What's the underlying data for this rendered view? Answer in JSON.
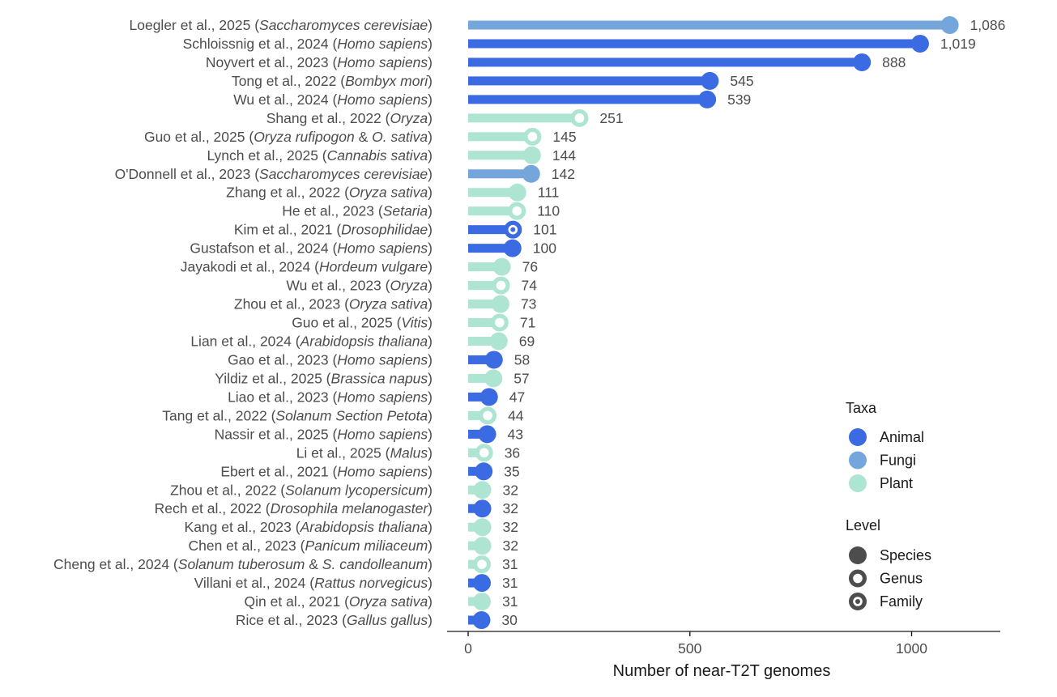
{
  "chart_data": {
    "type": "lollipop",
    "title": "",
    "xlabel": "Number of near-T2T genomes",
    "ylabel": "",
    "xlim": [
      -45,
      1200
    ],
    "xticks": [
      0,
      500,
      1000
    ],
    "xtick_labels": [
      "0",
      "500",
      "1000"
    ],
    "grid": false,
    "legend_position": "bottom-right",
    "colors": {
      "Animal": "#3a6be2",
      "Fungi": "#74a6dc",
      "Plant": "#aee5d2"
    },
    "legend": {
      "taxa_title": "Taxa",
      "taxa": [
        "Animal",
        "Fungi",
        "Plant"
      ],
      "level_title": "Level",
      "levels": [
        "Species",
        "Genus",
        "Family"
      ],
      "level_color": "#4d4d4d"
    },
    "rows": [
      {
        "author": "Loegler et al., 2025",
        "species": "Saccharomyces cerevisiae",
        "value": 1086,
        "label": "1,086",
        "taxa": "Fungi",
        "level": "Species"
      },
      {
        "author": "Schloissnig et al., 2024",
        "species": "Homo sapiens",
        "value": 1019,
        "label": "1,019",
        "taxa": "Animal",
        "level": "Species"
      },
      {
        "author": "Noyvert et al., 2023",
        "species": "Homo sapiens",
        "value": 888,
        "label": "888",
        "taxa": "Animal",
        "level": "Species"
      },
      {
        "author": "Tong et al., 2022",
        "species": "Bombyx mori",
        "value": 545,
        "label": "545",
        "taxa": "Animal",
        "level": "Species"
      },
      {
        "author": "Wu et al., 2024",
        "species": "Homo sapiens",
        "value": 539,
        "label": "539",
        "taxa": "Animal",
        "level": "Species"
      },
      {
        "author": "Shang et al., 2022",
        "species": "Oryza",
        "value": 251,
        "label": "251",
        "taxa": "Plant",
        "level": "Genus"
      },
      {
        "author": "Guo et al., 2025",
        "species": "Oryza rufipogon",
        "species_join": " & ",
        "species2": "O. sativa",
        "value": 145,
        "label": "145",
        "taxa": "Plant",
        "level": "Genus"
      },
      {
        "author": "Lynch et al., 2025",
        "species": "Cannabis sativa",
        "value": 144,
        "label": "144",
        "taxa": "Plant",
        "level": "Species"
      },
      {
        "author": "O'Donnell et al., 2023",
        "species": "Saccharomyces cerevisiae",
        "value": 142,
        "label": "142",
        "taxa": "Fungi",
        "level": "Species"
      },
      {
        "author": "Zhang et al., 2022",
        "species": "Oryza sativa",
        "value": 111,
        "label": "111",
        "taxa": "Plant",
        "level": "Species"
      },
      {
        "author": "He et al., 2023",
        "species": "Setaria",
        "value": 110,
        "label": "110",
        "taxa": "Plant",
        "level": "Genus"
      },
      {
        "author": "Kim et al., 2021",
        "species": "Drosophilidae",
        "value": 101,
        "label": "101",
        "taxa": "Animal",
        "level": "Family"
      },
      {
        "author": "Gustafson et al., 2024",
        "species": "Homo sapiens",
        "value": 100,
        "label": "100",
        "taxa": "Animal",
        "level": "Species"
      },
      {
        "author": "Jayakodi et al., 2024",
        "species": "Hordeum vulgare",
        "value": 76,
        "label": "76",
        "taxa": "Plant",
        "level": "Species"
      },
      {
        "author": "Wu et al., 2023",
        "species": "Oryza",
        "value": 74,
        "label": "74",
        "taxa": "Plant",
        "level": "Genus"
      },
      {
        "author": "Zhou et al., 2023",
        "species": "Oryza sativa",
        "value": 73,
        "label": "73",
        "taxa": "Plant",
        "level": "Species"
      },
      {
        "author": "Guo et al., 2025",
        "species": "Vitis",
        "value": 71,
        "label": "71",
        "taxa": "Plant",
        "level": "Genus"
      },
      {
        "author": "Lian et al., 2024",
        "species": "Arabidopsis thaliana",
        "value": 69,
        "label": "69",
        "taxa": "Plant",
        "level": "Species"
      },
      {
        "author": "Gao et al., 2023",
        "species": "Homo sapiens",
        "value": 58,
        "label": "58",
        "taxa": "Animal",
        "level": "Species"
      },
      {
        "author": "Yildiz et al., 2025",
        "species": "Brassica napus",
        "value": 57,
        "label": "57",
        "taxa": "Plant",
        "level": "Species"
      },
      {
        "author": "Liao et al., 2023",
        "species": "Homo sapiens",
        "value": 47,
        "label": "47",
        "taxa": "Animal",
        "level": "Species"
      },
      {
        "author": "Tang et al., 2022",
        "species": "Solanum Section Petota",
        "value": 44,
        "label": "44",
        "taxa": "Plant",
        "level": "Genus"
      },
      {
        "author": "Nassir et al., 2025",
        "species": "Homo sapiens",
        "value": 43,
        "label": "43",
        "taxa": "Animal",
        "level": "Species"
      },
      {
        "author": "Li et al., 2025",
        "species": "Malus",
        "value": 36,
        "label": "36",
        "taxa": "Plant",
        "level": "Genus"
      },
      {
        "author": "Ebert et al., 2021",
        "species": "Homo sapiens",
        "value": 35,
        "label": "35",
        "taxa": "Animal",
        "level": "Species"
      },
      {
        "author": "Zhou et al., 2022",
        "species": "Solanum lycopersicum",
        "value": 32,
        "label": "32",
        "taxa": "Plant",
        "level": "Species"
      },
      {
        "author": "Rech et al., 2022",
        "species": "Drosophila melanogaster",
        "value": 32,
        "label": "32",
        "taxa": "Animal",
        "level": "Species"
      },
      {
        "author": "Kang et al., 2023",
        "species": "Arabidopsis thaliana",
        "value": 32,
        "label": "32",
        "taxa": "Plant",
        "level": "Species"
      },
      {
        "author": "Chen et al., 2023",
        "species": "Panicum miliaceum",
        "value": 32,
        "label": "32",
        "taxa": "Plant",
        "level": "Species"
      },
      {
        "author": "Cheng et al., 2024",
        "species": "Solanum tuberosum",
        "species_join": " & ",
        "species2": "S. candolleanum",
        "value": 31,
        "label": "31",
        "taxa": "Plant",
        "level": "Genus"
      },
      {
        "author": "Villani et al., 2024",
        "species": "Rattus norvegicus",
        "value": 31,
        "label": "31",
        "taxa": "Animal",
        "level": "Species"
      },
      {
        "author": "Qin et al., 2021",
        "species": "Oryza sativa",
        "value": 31,
        "label": "31",
        "taxa": "Plant",
        "level": "Species"
      },
      {
        "author": "Rice et al., 2023",
        "species": "Gallus gallus",
        "value": 30,
        "label": "30",
        "taxa": "Animal",
        "level": "Species"
      }
    ]
  }
}
